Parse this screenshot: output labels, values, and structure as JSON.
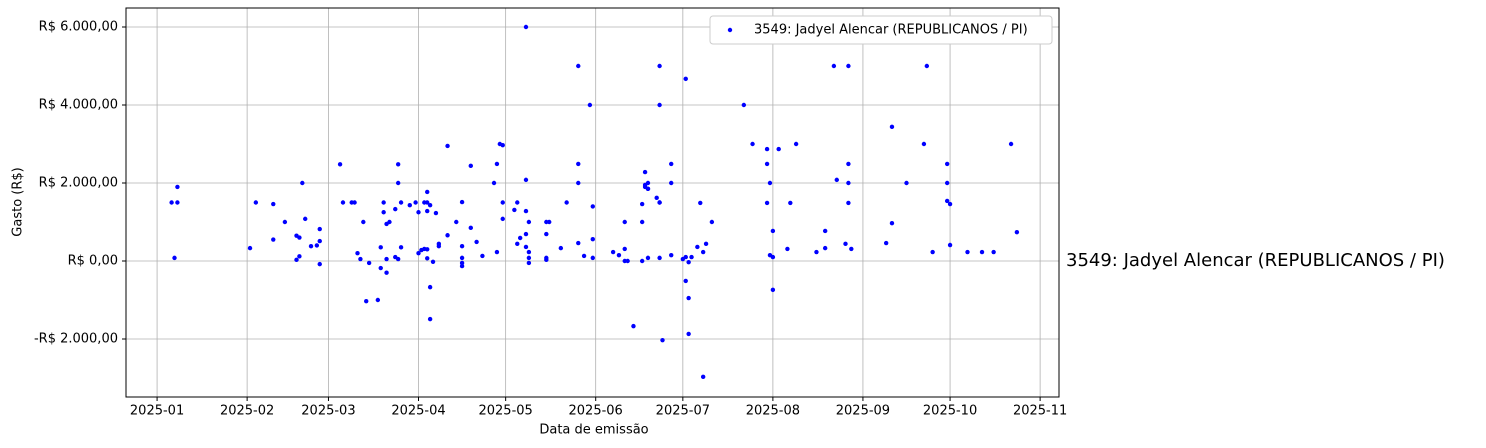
{
  "chart_data": {
    "type": "scatter",
    "x_label": "Data de emissão",
    "y_label": "Gasto (R$)",
    "grid": true,
    "legend": "upper right",
    "xlim": [
      20078.3,
      20399.5
    ],
    "ylim": [
      -3487,
      6487
    ],
    "xticks": [
      {
        "value": 20089,
        "label": "2025-01"
      },
      {
        "value": 20120,
        "label": "2025-02"
      },
      {
        "value": 20148,
        "label": "2025-03"
      },
      {
        "value": 20179,
        "label": "2025-04"
      },
      {
        "value": 20209,
        "label": "2025-05"
      },
      {
        "value": 20240,
        "label": "2025-06"
      },
      {
        "value": 20270,
        "label": "2025-07"
      },
      {
        "value": 20301,
        "label": "2025-08"
      },
      {
        "value": 20332,
        "label": "2025-09"
      },
      {
        "value": 20362,
        "label": "2025-10"
      },
      {
        "value": 20393,
        "label": "2025-11"
      }
    ],
    "yticks": [
      {
        "value": -2000,
        "label": "-R$ 2.000,00"
      },
      {
        "value": 0,
        "label": "R$ 0,00"
      },
      {
        "value": 2000,
        "label": "R$ 2.000,00"
      },
      {
        "value": 4000,
        "label": "R$ 4.000,00"
      },
      {
        "value": 6000,
        "label": "R$ 6.000,00"
      }
    ],
    "x": [
      20094,
      20096,
      20096,
      20095,
      20121,
      20123,
      20129,
      20129,
      20133,
      20137,
      20137,
      20138,
      20138,
      20139,
      20140,
      20142,
      20144,
      20145,
      20145,
      20145,
      20152,
      20153,
      20156,
      20157,
      20158,
      20159,
      20160,
      20161,
      20162,
      20165,
      20166,
      20166,
      20167,
      20167,
      20168,
      20168,
      20168,
      20169,
      20171,
      20171,
      20172,
      20172,
      20172,
      20173,
      20173,
      20176,
      20178,
      20179,
      20179,
      20180,
      20181,
      20181,
      20182,
      20182,
      20182,
      20182,
      20182,
      20183,
      20183,
      20183,
      20184,
      20185,
      20186,
      20186,
      20189,
      20189,
      20192,
      20194,
      20194,
      20194,
      20194,
      20194,
      20197,
      20197,
      20199,
      20201,
      20205,
      20206,
      20206,
      20207,
      20208,
      20208,
      20208,
      20212,
      20213,
      20213,
      20214,
      20216,
      20216,
      20216,
      20216,
      20216,
      20217,
      20217,
      20217,
      20217,
      20223,
      20223,
      20223,
      20223,
      20224,
      20228,
      20230,
      20234,
      20234,
      20234,
      20234,
      20236,
      20238,
      20239,
      20239,
      20239,
      20246,
      20248,
      20250,
      20250,
      20250,
      20251,
      20253,
      20256,
      20256,
      20256,
      20257,
      20257,
      20257,
      20258,
      20258,
      20258,
      20258,
      20261,
      20262,
      20262,
      20262,
      20262,
      20262,
      20263,
      20266,
      20266,
      20266,
      20270,
      20271,
      20271,
      20271,
      20272,
      20272,
      20272,
      20273,
      20275,
      20276,
      20277,
      20277,
      20278,
      20280,
      20291,
      20294,
      20299,
      20299,
      20299,
      20300,
      20300,
      20301,
      20301,
      20301,
      20303,
      20306,
      20307,
      20309,
      20316,
      20319,
      20319,
      20322,
      20323,
      20326,
      20327,
      20327,
      20327,
      20327,
      20328,
      20340,
      20342,
      20342,
      20347,
      20353,
      20354,
      20356,
      20361,
      20361,
      20361,
      20362,
      20362,
      20368,
      20373,
      20377,
      20383,
      20385
    ],
    "series": [
      {
        "name": "3549: Jadyel Alencar (REPUBLICANOS / PI)",
        "color": "#0000ff",
        "values": [
          1500,
          1500,
          1900,
          80,
          330,
          1500,
          550,
          1460,
          1000,
          30,
          650,
          600,
          120,
          2000,
          1080,
          380,
          400,
          510,
          820,
          -80,
          2480,
          1500,
          1500,
          1500,
          200,
          50,
          1000,
          -1030,
          -50,
          -1000,
          350,
          -180,
          1500,
          1250,
          50,
          -300,
          950,
          1000,
          100,
          1330,
          50,
          2480,
          2000,
          1500,
          350,
          1430,
          1500,
          200,
          1250,
          280,
          310,
          1500,
          70,
          1280,
          1500,
          300,
          1770,
          1430,
          -670,
          -1490,
          -20,
          1230,
          380,
          440,
          660,
          2950,
          1000,
          1510,
          -50,
          -130,
          80,
          380,
          2440,
          850,
          490,
          130,
          2000,
          230,
          2490,
          3000,
          2970,
          1500,
          1080,
          1310,
          1500,
          440,
          590,
          6000,
          2080,
          1280,
          690,
          360,
          1000,
          230,
          80,
          -50,
          1000,
          80,
          30,
          690,
          1000,
          330,
          1500,
          5000,
          2490,
          2000,
          460,
          130,
          4000,
          1400,
          560,
          80,
          230,
          150,
          1000,
          310,
          0,
          0,
          -1670,
          1000,
          1460,
          0,
          1900,
          1950,
          2280,
          1850,
          2000,
          80,
          1850,
          1620,
          1500,
          5000,
          4000,
          1500,
          80,
          -2030,
          2000,
          2490,
          150,
          50,
          4670,
          100,
          -510,
          -950,
          -1870,
          -30,
          100,
          360,
          1490,
          230,
          -2970,
          440,
          1000,
          4000,
          3000,
          2490,
          1490,
          2870,
          2000,
          150,
          770,
          100,
          -740,
          2870,
          310,
          1490,
          3000,
          230,
          770,
          330,
          5000,
          2080,
          440,
          2490,
          5000,
          2000,
          1490,
          310,
          460,
          3440,
          970,
          2000,
          3000,
          5000,
          230,
          2490,
          2000,
          1540,
          1460,
          410,
          230,
          230,
          230,
          3000,
          740
        ]
      }
    ]
  }
}
